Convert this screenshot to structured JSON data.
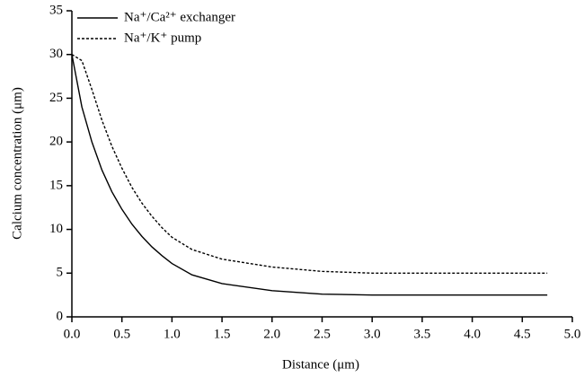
{
  "chart_data": {
    "type": "line",
    "xlabel": "Distance (μm)",
    "ylabel": "Calcium concentration (μm)",
    "x": [
      0,
      0.1,
      0.2,
      0.3,
      0.4,
      0.5,
      0.6,
      0.7,
      0.8,
      0.9,
      1.0,
      1.2,
      1.5,
      2.0,
      2.5,
      3.0,
      3.5,
      4.0,
      4.5,
      4.75
    ],
    "series": [
      {
        "name": "Na⁺/Ca²⁺ exchanger",
        "color": "#000000",
        "dash": "solid",
        "values": [
          30,
          24,
          20,
          16.8,
          14.3,
          12.3,
          10.6,
          9.2,
          8,
          7,
          6.1,
          4.8,
          3.8,
          3.0,
          2.6,
          2.5,
          2.5,
          2.5,
          2.5,
          2.5
        ]
      },
      {
        "name": "Na⁺/K⁺ pump",
        "color": "#000000",
        "dash": "dashed",
        "values": [
          30,
          29.3,
          26,
          22.5,
          19.5,
          17,
          14.8,
          13,
          11.5,
          10.2,
          9.1,
          7.7,
          6.6,
          5.7,
          5.2,
          5.0,
          5.0,
          5.0,
          5.0,
          5.0
        ]
      }
    ],
    "xlim": [
      0,
      5.0
    ],
    "xticks": [
      {
        "value": 0,
        "label": "0.0"
      },
      0.5,
      {
        "value": 1,
        "label": "1.0"
      },
      1.5,
      {
        "value": 2,
        "label": "2.0"
      },
      2.5,
      {
        "value": 3,
        "label": "3.0"
      },
      3.5,
      {
        "value": 4,
        "label": "4.0"
      },
      4.5,
      {
        "value": 5,
        "label": "5.0"
      }
    ],
    "ylim": [
      0,
      35
    ],
    "yticks": [
      0,
      5,
      10,
      15,
      20,
      25,
      30,
      35
    ],
    "grid": false,
    "legend": "upper left"
  }
}
